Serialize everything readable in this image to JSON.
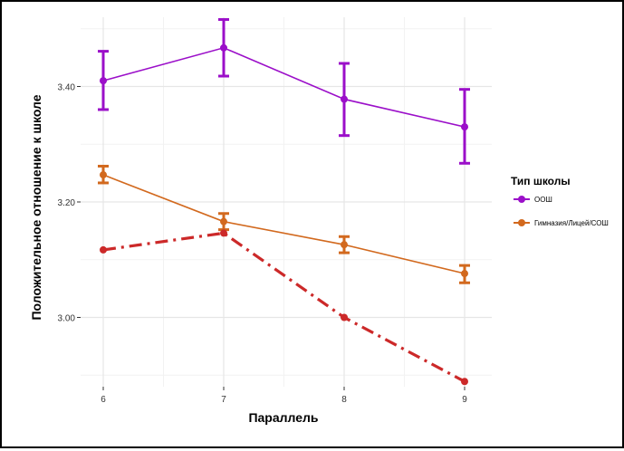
{
  "chart_data": {
    "type": "line",
    "title": "",
    "xlabel": "Параллель",
    "ylabel": "Положительное отношение к школе",
    "categories": [
      "6",
      "7",
      "8",
      "9"
    ],
    "ylim": [
      2.88,
      3.52
    ],
    "yticks": [
      3.0,
      3.2,
      3.4
    ],
    "ytick_labels": [
      "3.00",
      "3.20",
      "3.40"
    ],
    "grid": true,
    "legend_position": "right",
    "legend_title": "Тип школы",
    "series": [
      {
        "name": "ООШ",
        "color": "#9b0fc9",
        "style": "solid",
        "values": [
          3.41,
          3.467,
          3.378,
          3.33
        ],
        "error_low": [
          3.36,
          3.418,
          3.315,
          3.267
        ],
        "error_high": [
          3.461,
          3.516,
          3.44,
          3.395
        ]
      },
      {
        "name": "Гимназия/Лицей/СОШ",
        "color": "#d2691e",
        "style": "solid",
        "values": [
          3.247,
          3.166,
          3.126,
          3.076
        ],
        "error_low": [
          3.233,
          3.152,
          3.112,
          3.06
        ],
        "error_high": [
          3.262,
          3.18,
          3.14,
          3.09
        ]
      },
      {
        "name": "",
        "color": "#cc2929",
        "style": "dashdot",
        "values": [
          3.117,
          3.146,
          3.0,
          2.889
        ]
      }
    ]
  }
}
